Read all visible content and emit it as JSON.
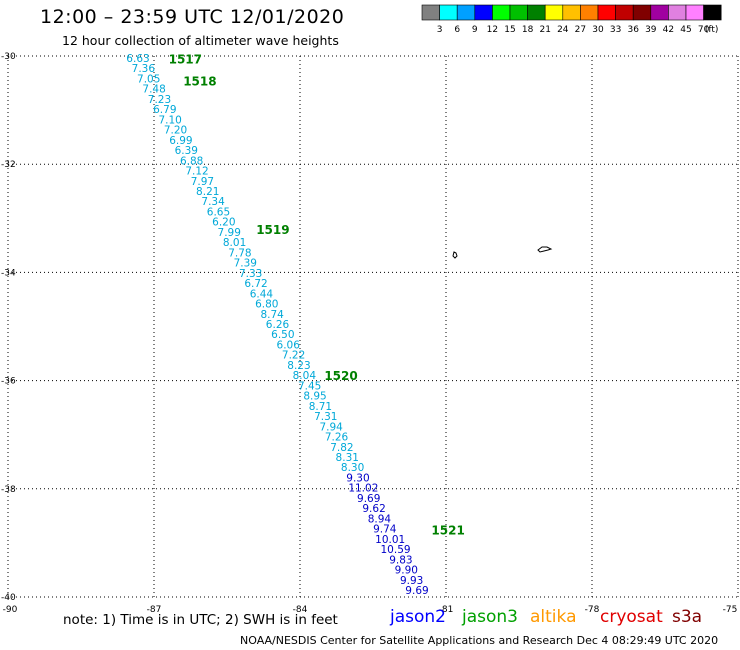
{
  "header": {
    "title": "12:00 – 23:59 UTC 12/01/2020",
    "subtitle": "12 hour collection of altimeter wave heights"
  },
  "colorbar": {
    "ticks": [
      "3",
      "6",
      "9",
      "12",
      "15",
      "18",
      "21",
      "24",
      "27",
      "30",
      "33",
      "36",
      "39",
      "42",
      "45",
      "70",
      "(ft)"
    ],
    "colors": [
      "#808080",
      "#00ffff",
      "#00a0ff",
      "#0000ff",
      "#00ff00",
      "#00c000",
      "#008000",
      "#ffff00",
      "#ffc000",
      "#ff8000",
      "#ff0000",
      "#c00000",
      "#800000",
      "#a000a0",
      "#e080e0",
      "#ff80ff",
      "#000000"
    ]
  },
  "axes": {
    "lat_labels": [
      "-30",
      "-32",
      "-34",
      "-36",
      "-38",
      "-40"
    ],
    "lon_labels": [
      "-90",
      "-87",
      "-84",
      "-81",
      "-78",
      "-75"
    ]
  },
  "passes": [
    {
      "label": "1517",
      "lat": -30.05,
      "lon": -86.7
    },
    {
      "label": "1518",
      "lat": -30.45,
      "lon": -86.4
    },
    {
      "label": "1519",
      "lat": -33.2,
      "lon": -84.9
    },
    {
      "label": "1520",
      "lat": -35.9,
      "lon": -83.5
    },
    {
      "label": "1521",
      "lat": -38.75,
      "lon": -81.3
    }
  ],
  "track_jason3": [
    "6.63",
    "7.36",
    "7.05",
    "7.48",
    "7.23",
    "6.79",
    "7.10",
    "7.20",
    "6.99",
    "6.39",
    "6.88",
    "7.12",
    "7.97",
    "8.21",
    "7.34",
    "6.65",
    "6.20",
    "7.99",
    "8.01",
    "7.78",
    "7.39",
    "7.33",
    "6.72",
    "6.44",
    "6.80",
    "8.74",
    "6.26",
    "6.50",
    "6.06",
    "7.22",
    "8.23",
    "8.04",
    "7.45",
    "8.95",
    "8.71",
    "7.31",
    "7.94",
    "7.26",
    "7.82",
    "8.31",
    "8.30"
  ],
  "track_jason2": [
    "9.30",
    "11.02",
    "9.69",
    "9.62",
    "8.94",
    "9.74",
    "10.01",
    "10.59",
    "9.83",
    "9.90",
    "9.93",
    "9.69"
  ],
  "colors": {
    "jason3_values": "#00a8d8",
    "jason2_values": "#0000c8",
    "pass_label": "#008000",
    "legend_jason2": "#0000ff",
    "legend_jason3": "#00a000",
    "legend_altika": "#ff9900",
    "legend_cryosat": "#e00000",
    "legend_s3a": "#800000"
  },
  "legend": {
    "jason2": "jason2",
    "jason3": "jason3",
    "altika": "altika",
    "cryosat": "cryosat",
    "s3a": "s3a"
  },
  "footer": {
    "note": "note:  1) Time is in UTC;  2) SWH is in feet",
    "credit": "NOAA/NESDIS Center for Satellite Applications and Research     Dec  4 08:29:49 UTC 2020"
  }
}
